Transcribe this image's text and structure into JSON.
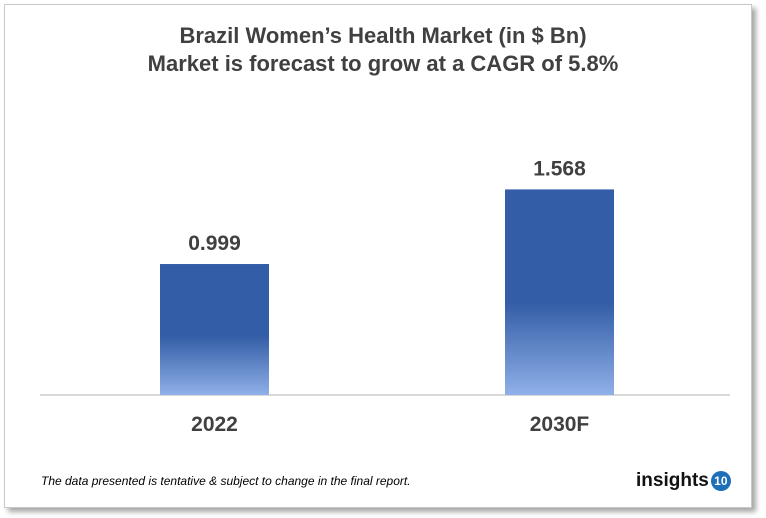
{
  "chart_data": {
    "type": "bar",
    "title": "Brazil Women’s Health Market (in $ Bn)",
    "subtitle": "Market is forecast to grow at a CAGR of 5.8%",
    "categories": [
      "2022",
      "2030F"
    ],
    "values": [
      0.999,
      1.568
    ],
    "data_labels": [
      "0.999",
      "1.568"
    ],
    "xlabel": "",
    "ylabel": "",
    "ylim": [
      0,
      1.8
    ],
    "grid": false,
    "bar_color_top": "#335da6",
    "bar_color_bottom": "#8fb0e8"
  },
  "footnote": "The data presented is tentative & subject to change in the final report.",
  "logo": {
    "text": "insights",
    "badge": "10"
  }
}
